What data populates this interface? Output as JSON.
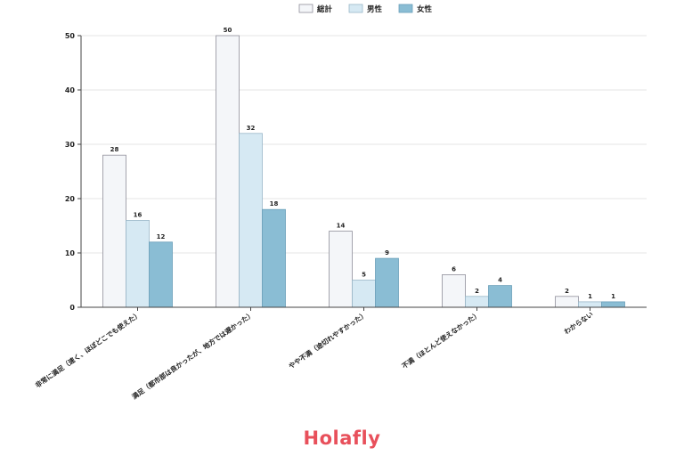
{
  "chart_data": {
    "type": "bar",
    "categories": [
      "非常に満足（速く、ほぼどこでも使えた）",
      "満足（都市部は良かったが、地方では遅かった）",
      "やや不満（途切れやすかった）",
      "不満（ほとんど使えなかった）",
      "わからない"
    ],
    "series": [
      {
        "name": "総計",
        "values": [
          28,
          50,
          14,
          6,
          2
        ],
        "color": "#f4f6f9",
        "stroke": "#8f8f9a"
      },
      {
        "name": "男性",
        "values": [
          16,
          32,
          5,
          2,
          1
        ],
        "color": "#d6e9f3",
        "stroke": "#9ab7c8"
      },
      {
        "name": "女性",
        "values": [
          12,
          18,
          9,
          4,
          1
        ],
        "color": "#8abdd4",
        "stroke": "#6a9fb9"
      }
    ],
    "ylim": [
      0,
      50
    ],
    "yticks": [
      0,
      10,
      20,
      30,
      40,
      50
    ],
    "grid": true,
    "legend": "top-center",
    "xlabel": "",
    "ylabel": ""
  },
  "logo": {
    "text": "Holafly",
    "color": "#e8505b"
  }
}
